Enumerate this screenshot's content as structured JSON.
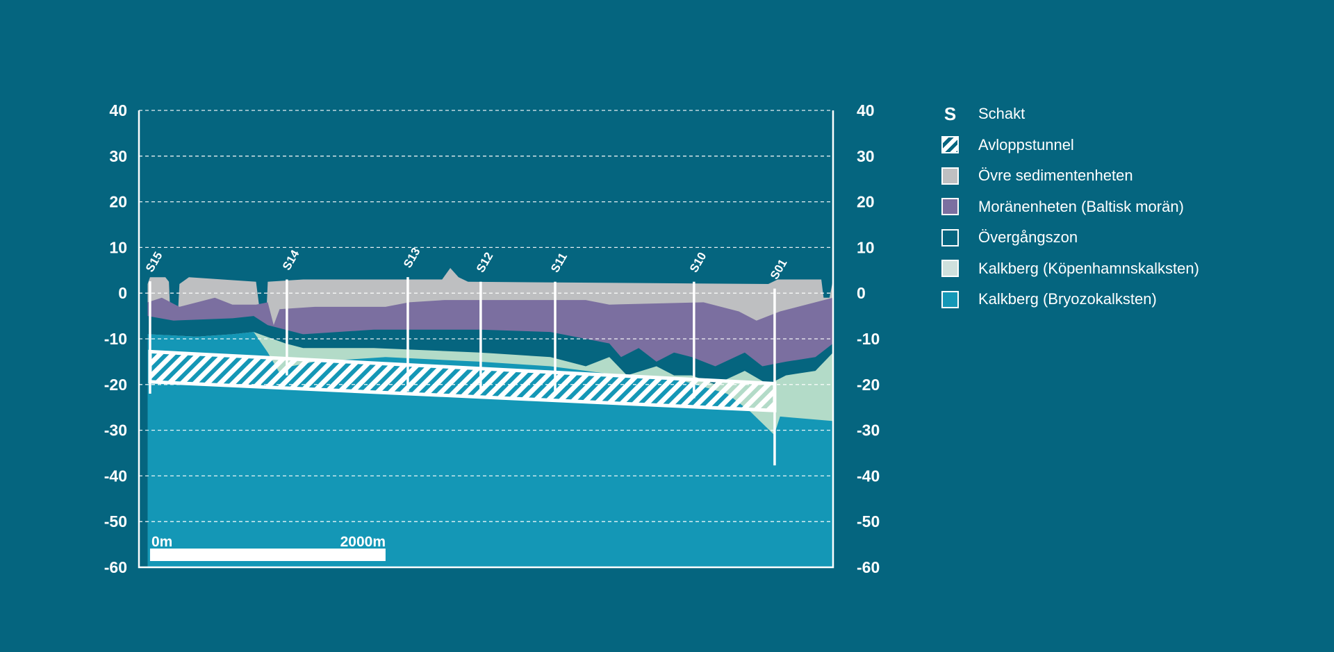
{
  "chart_data": {
    "type": "area",
    "title": "",
    "xlabel": "",
    "ylabel": "",
    "x_unit": "m",
    "xlim": [
      -94,
      5800
    ],
    "ylim": [
      -60,
      40
    ],
    "yticks": [
      40,
      30,
      20,
      10,
      0,
      -10,
      -20,
      -30,
      -40,
      -50,
      -60
    ],
    "grid": true,
    "scale_bar": {
      "start_label": "0m",
      "end_label": "2000m",
      "length_m": 2000
    },
    "colors": {
      "background": "#05657f",
      "ovre": "#bebfc1",
      "moran": "#7b6fa0",
      "overgang": "#05657f",
      "kopenhamn": "#b3dbc8",
      "bryozo": "#1497b6"
    },
    "layers": [
      {
        "key": "ovre",
        "name": "Övre sedimentenheten",
        "top": [
          [
            -20,
            2
          ],
          [
            0,
            3.5
          ],
          [
            130,
            3.5
          ],
          [
            160,
            2.5
          ],
          [
            170,
            -3
          ],
          [
            240,
            -3
          ],
          [
            250,
            2
          ],
          [
            330,
            3.5
          ],
          [
            900,
            2.5
          ],
          [
            930,
            -3.5
          ],
          [
            990,
            -3.5
          ],
          [
            1000,
            2.5
          ],
          [
            1300,
            3
          ],
          [
            2480,
            3
          ],
          [
            2550,
            5.5
          ],
          [
            2620,
            3.5
          ],
          [
            2700,
            2.5
          ],
          [
            5250,
            2
          ],
          [
            5330,
            3
          ],
          [
            5700,
            3
          ],
          [
            5720,
            -1
          ],
          [
            5770,
            -1
          ],
          [
            5800,
            3
          ]
        ]
      },
      {
        "key": "moran",
        "name": "Moränenheten (Baltisk morän)",
        "top": [
          [
            -20,
            -2
          ],
          [
            100,
            -1
          ],
          [
            250,
            -3
          ],
          [
            400,
            -2
          ],
          [
            550,
            -1
          ],
          [
            700,
            -2.5
          ],
          [
            900,
            -2.5
          ],
          [
            1000,
            -2
          ],
          [
            1050,
            -7
          ],
          [
            1100,
            -3.5
          ],
          [
            1400,
            -3
          ],
          [
            2000,
            -3
          ],
          [
            2200,
            -2
          ],
          [
            2500,
            -1.5
          ],
          [
            3700,
            -1.5
          ],
          [
            3900,
            -2.5
          ],
          [
            4700,
            -2
          ],
          [
            5000,
            -4
          ],
          [
            5150,
            -6
          ],
          [
            5350,
            -4
          ],
          [
            5800,
            -1
          ]
        ]
      },
      {
        "key": "overgang",
        "name": "Övergångszon",
        "top": [
          [
            -20,
            -5
          ],
          [
            200,
            -6
          ],
          [
            700,
            -5.5
          ],
          [
            880,
            -5
          ],
          [
            1000,
            -7
          ],
          [
            1300,
            -9
          ],
          [
            1900,
            -8
          ],
          [
            2800,
            -8
          ],
          [
            3400,
            -8.5
          ],
          [
            3700,
            -10
          ],
          [
            3900,
            -11
          ],
          [
            4000,
            -14
          ],
          [
            4150,
            -12
          ],
          [
            4300,
            -15
          ],
          [
            4450,
            -13
          ],
          [
            4600,
            -14
          ],
          [
            4800,
            -16
          ],
          [
            5050,
            -13
          ],
          [
            5200,
            -16
          ],
          [
            5400,
            -15
          ],
          [
            5650,
            -14
          ],
          [
            5800,
            -11
          ]
        ]
      },
      {
        "key": "kopenhamn",
        "name": "Kalkberg (Köpenhamnskalksten)",
        "top": [
          [
            -20,
            -9
          ],
          [
            400,
            -9.5
          ],
          [
            700,
            -9
          ],
          [
            880,
            -8.5
          ],
          [
            1150,
            -11
          ],
          [
            1300,
            -12
          ],
          [
            1900,
            -12
          ],
          [
            2800,
            -13
          ],
          [
            3400,
            -14
          ],
          [
            3700,
            -16
          ],
          [
            3900,
            -14
          ],
          [
            4050,
            -18
          ],
          [
            4300,
            -16
          ],
          [
            4450,
            -18
          ],
          [
            4600,
            -18
          ],
          [
            4800,
            -20
          ],
          [
            5050,
            -17
          ],
          [
            5250,
            -20
          ],
          [
            5400,
            -18
          ],
          [
            5650,
            -17
          ],
          [
            5800,
            -13
          ]
        ]
      },
      {
        "key": "bryozo",
        "name": "Kalkberg (Bryozokalksten)",
        "top": [
          [
            -20,
            -9
          ],
          [
            400,
            -9.5
          ],
          [
            700,
            -9
          ],
          [
            880,
            -8.5
          ],
          [
            1000,
            -13
          ],
          [
            1100,
            -17.5
          ],
          [
            1200,
            -16
          ],
          [
            1400,
            -15
          ],
          [
            2000,
            -14
          ],
          [
            2800,
            -15
          ],
          [
            3400,
            -16
          ],
          [
            4000,
            -18
          ],
          [
            4500,
            -19
          ],
          [
            4900,
            -22
          ],
          [
            5100,
            -26
          ],
          [
            5300,
            -31
          ],
          [
            5350,
            -27
          ],
          [
            5800,
            -28
          ]
        ]
      }
    ],
    "tunnel": {
      "name": "Avloppstunnel",
      "start": {
        "x": 0,
        "top": -12.8,
        "bottom": -19.4
      },
      "end": {
        "x": 5304,
        "top": -19.8,
        "bottom": -25.7
      }
    },
    "shafts": [
      {
        "label": "S15",
        "x": 0,
        "top": 2.6,
        "bottom": -22
      },
      {
        "label": "S14",
        "x": 1162,
        "top": 3,
        "bottom": -18
      },
      {
        "label": "S13",
        "x": 2189,
        "top": 3.5,
        "bottom": -21.5
      },
      {
        "label": "S12",
        "x": 2808,
        "top": 2.5,
        "bottom": -22
      },
      {
        "label": "S11",
        "x": 3440,
        "top": 2.5,
        "bottom": -22
      },
      {
        "label": "S10",
        "x": 4619,
        "top": 2.5,
        "bottom": -23
      },
      {
        "label": "S01",
        "x": 5304,
        "top": 1,
        "bottom": -37.7
      }
    ]
  },
  "legend": {
    "shaft_symbol": "S",
    "items": [
      {
        "label": "Schakt"
      },
      {
        "label": "Avloppstunnel"
      },
      {
        "label": "Övre sedimentenheten"
      },
      {
        "label": "Moränenheten (Baltisk morän)"
      },
      {
        "label": "Övergångszon"
      },
      {
        "label": "Kalkberg (Köpenhamnskalksten)"
      },
      {
        "label": "Kalkberg (Bryozokalksten)"
      }
    ]
  }
}
